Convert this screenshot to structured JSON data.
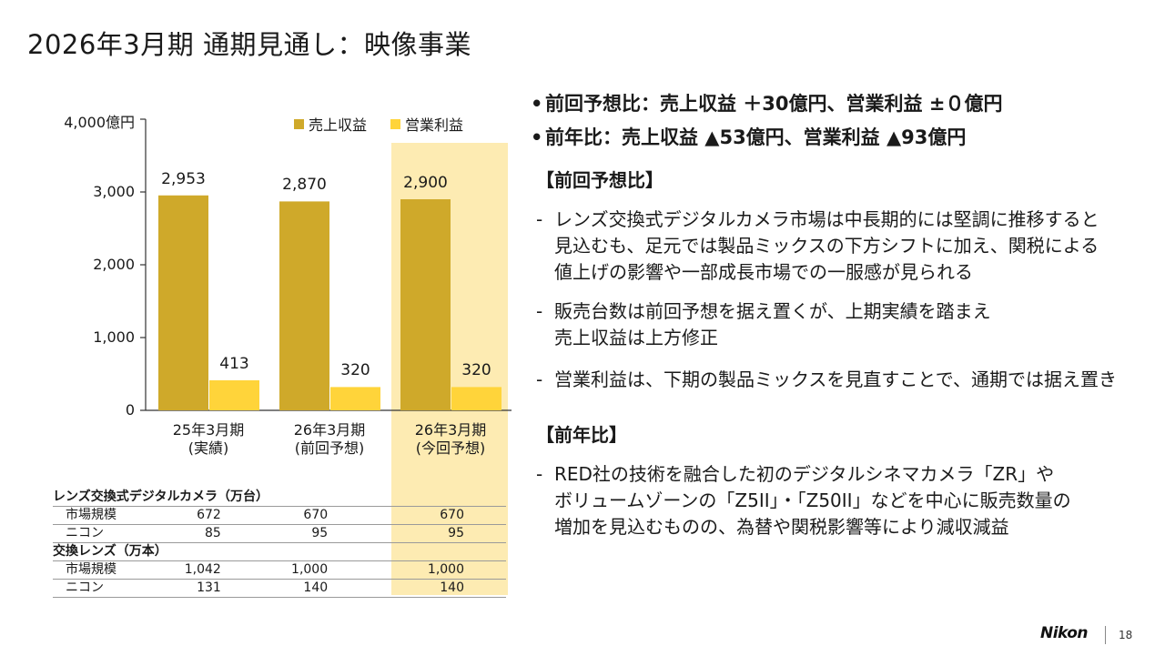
{
  "page": {
    "title": "2026年3月期 通期見通し：映像事業",
    "page_number": "18",
    "logo_text": "Nikon"
  },
  "colors": {
    "revenue": "#cfa92a",
    "operating_profit": "#ffd43a",
    "highlight": "#fdebb2"
  },
  "chart_data": {
    "type": "bar",
    "y_unit_label": "4,000億円",
    "ylim": [
      0,
      4000
    ],
    "yticks": [
      {
        "value": 4000,
        "label": "4,000億円"
      },
      {
        "value": 3000,
        "label": "3,000"
      },
      {
        "value": 2000,
        "label": "2,000"
      },
      {
        "value": 1000,
        "label": "1,000"
      },
      {
        "value": 0,
        "label": "0"
      }
    ],
    "categories": [
      {
        "line1": "25年3月期",
        "line2": "(実績)"
      },
      {
        "line1": "26年3月期",
        "line2": "(前回予想)"
      },
      {
        "line1": "26年3月期",
        "line2": "(今回予想)"
      }
    ],
    "series": [
      {
        "name": "売上収益",
        "values": [
          2953,
          2870,
          2900
        ],
        "labels": [
          "2,953",
          "2,870",
          "2,900"
        ]
      },
      {
        "name": "営業利益",
        "values": [
          413,
          320,
          320
        ],
        "labels": [
          "413",
          "320",
          "320"
        ]
      }
    ],
    "legend_position": "top-right",
    "highlighted_category": 2
  },
  "units_table": {
    "sections": [
      {
        "title": "レンズ交換式デジタルカメラ（万台）",
        "rows": [
          {
            "label": "市場規模",
            "values": [
              "672",
              "670",
              "670"
            ]
          },
          {
            "label": "ニコン",
            "values": [
              "85",
              "95",
              "95"
            ]
          }
        ]
      },
      {
        "title": "交換レンズ（万本）",
        "rows": [
          {
            "label": "市場規模",
            "values": [
              "1,042",
              "1,000",
              "1,000"
            ]
          },
          {
            "label": "ニコン",
            "values": [
              "131",
              "140",
              "140"
            ]
          }
        ]
      }
    ]
  },
  "summary": {
    "bullet1": "前回予想比：売上収益 ＋30億円、営業利益 ±０億円",
    "bullet2": "前年比：売上収益 ▲53億円、営業利益 ▲93億円",
    "section1_title": "【前回予想比】",
    "section1_items": [
      {
        "lines": [
          "レンズ交換式デジタルカメラ市場は中長期的には堅調に推移すると",
          "見込むも、足元では製品ミックスの下方シフトに加え、関税による",
          "値上げの影響や一部成長市場での一服感が見られる"
        ]
      },
      {
        "lines": [
          "販売台数は前回予想を据え置くが、上期実績を踏まえ",
          "売上収益は上方修正"
        ]
      },
      {
        "lines": [
          "営業利益は、下期の製品ミックスを見直すことで、通期では据え置き"
        ]
      }
    ],
    "section2_title": "【前年比】",
    "section2_items": [
      {
        "lines": [
          "RED社の技術を融合した初のデジタルシネマカメラ「ZR」や",
          "ボリュームゾーンの「Z5II」・「Z50II」などを中心に販売数量の",
          "増加を見込むものの、為替や関税影響等により減収減益"
        ]
      }
    ]
  }
}
